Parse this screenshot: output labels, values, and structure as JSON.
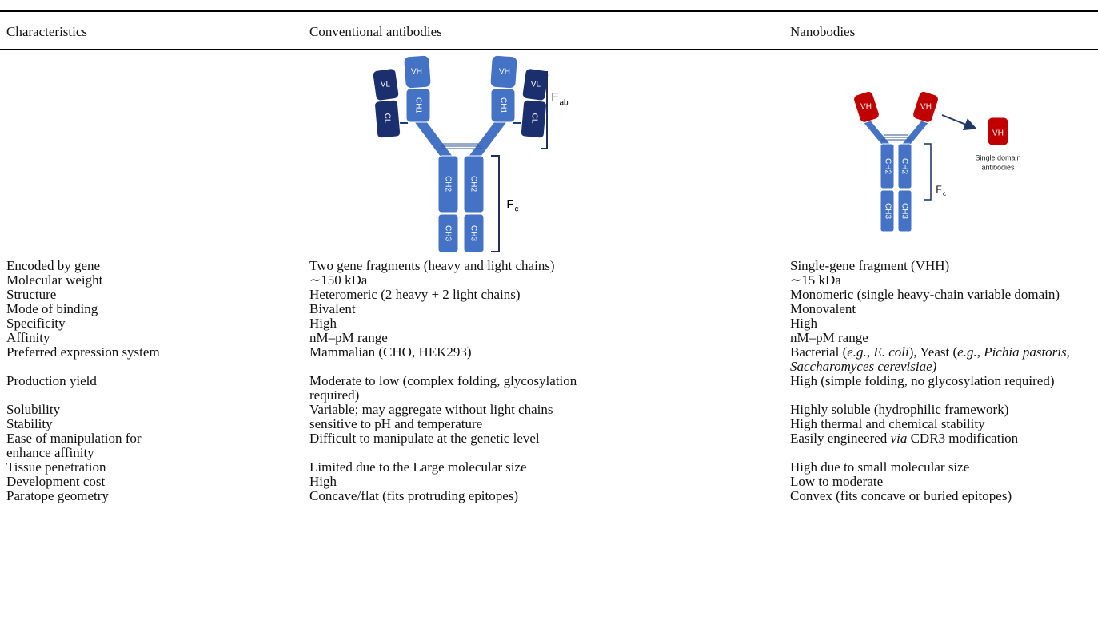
{
  "table": {
    "header": [
      "Characteristics",
      "Conventional antibodies",
      "Nanobodies"
    ],
    "figures": {
      "conventional": {
        "vl": "VL",
        "vh": "VH",
        "cl": "CL",
        "ch1": "CH1",
        "ch2": "CH2",
        "ch3": "CH3",
        "fab": "F",
        "fab_sub": "ab",
        "fc": "F",
        "fc_sub": "c"
      },
      "nanobodies": {
        "vh": "VH",
        "ch2": "CH2",
        "ch3": "CH3",
        "fc": "F",
        "fc_sub": "c",
        "single_domain": [
          "Single domain",
          "antibodies"
        ]
      }
    },
    "rows": [
      [
        "Encoded by gene",
        "Two gene fragments (heavy and light chains)",
        "Single-gene fragment (VHH)"
      ],
      [
        "Molecular weight",
        "∼150 kDa",
        "∼15 kDa"
      ],
      [
        "Structure",
        "Heteromeric (2 heavy + 2 light chains)",
        "Monomeric (single heavy-chain variable domain)"
      ],
      [
        "Mode of binding",
        "Bivalent",
        "Monovalent"
      ],
      [
        "Specificity",
        "High",
        "High"
      ],
      [
        "Affinity",
        "nM–pM range",
        "nM–pM range"
      ],
      [
        "Preferred expression system",
        "Mammalian (CHO, HEK293)",
        [
          "Bacterial (",
          {
            "text": "e.g.",
            "italic": true
          },
          ", ",
          {
            "text": "E. coli",
            "italic": true
          },
          "), Yeast (",
          {
            "text": "e.g.",
            "italic": true
          },
          ", ",
          {
            "text": "Pichia pastoris, Saccharomyces cerevisiae)",
            "italic": true
          }
        ]
      ],
      [
        "Production yield",
        "Moderate to low (complex folding, glycosylation required)",
        "High (simple folding, no glycosylation required)"
      ],
      [
        "Solubility",
        "Variable; may aggregate without light chains",
        "Highly soluble (hydrophilic framework)"
      ],
      [
        "Stability",
        "sensitive to pH and temperature",
        "High thermal and chemical stability"
      ],
      [
        "Ease of manipulation for enhance affinity",
        "Difficult to manipulate at the genetic level",
        [
          "Easily engineered ",
          {
            "text": "via",
            "italic": true
          },
          " CDR3 modification"
        ]
      ],
      [
        "Tissue penetration",
        "Limited due to the Large molecular size",
        "High due to small molecular size"
      ],
      [
        "Development cost",
        "High",
        "Low to moderate"
      ],
      [
        "Paratope geometry",
        "Concave/flat (fits protruding epitopes)",
        "Convex (fits concave or buried epitopes)"
      ]
    ]
  }
}
